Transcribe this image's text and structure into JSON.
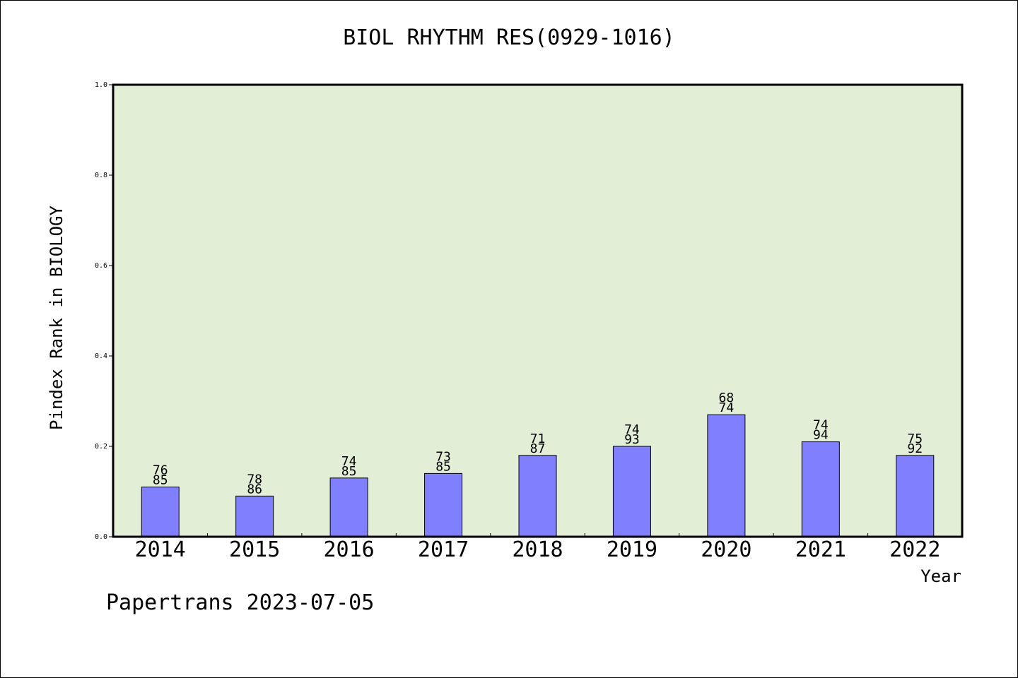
{
  "chart_data": {
    "type": "bar",
    "title": "BIOL RHYTHM RES(0929-1016)",
    "xlabel": "Year",
    "ylabel": "Pindex Rank in BIOLOGY",
    "ylim": [
      0,
      1.0
    ],
    "yticks": [
      "0.0",
      "0.2",
      "0.4",
      "0.6",
      "0.8",
      "1.0"
    ],
    "categories": [
      "2014",
      "2015",
      "2016",
      "2017",
      "2018",
      "2019",
      "2020",
      "2021",
      "2022"
    ],
    "values": [
      0.11,
      0.09,
      0.13,
      0.14,
      0.18,
      0.2,
      0.27,
      0.21,
      0.18
    ],
    "labels_top": [
      "76",
      "78",
      "74",
      "73",
      "71",
      "74",
      "68",
      "74",
      "75"
    ],
    "labels_bottom": [
      "85",
      "86",
      "85",
      "85",
      "87",
      "93",
      "74",
      "94",
      "92"
    ],
    "grid": false,
    "colors": {
      "plot_bg": "#e2efd6",
      "bar": "#8080ff",
      "bar_edge": "#000000"
    }
  },
  "footer": "Papertrans 2023-07-05"
}
